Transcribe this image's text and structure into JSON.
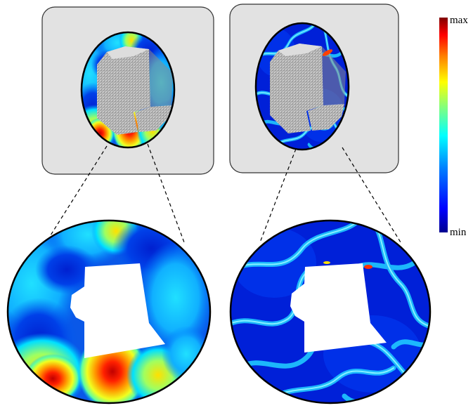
{
  "colorbar": {
    "max_label": "max",
    "min_label": "min",
    "colormap": "jet",
    "stops": [
      "#00008f",
      "#0000ff",
      "#0080ff",
      "#00ffff",
      "#80ff80",
      "#ffff00",
      "#ff8000",
      "#ff0000",
      "#800000"
    ]
  },
  "panels": [
    {
      "id": "left",
      "pattern": "smooth-field",
      "mesh_color": "#b9b9b9"
    },
    {
      "id": "right",
      "pattern": "banded-field",
      "mesh_color": "#b9b9b9"
    }
  ],
  "colors": {
    "panel_bg": "#e2e2e2",
    "panel_border": "#333333",
    "outline": "#000000",
    "cutout": "#ffffff"
  }
}
